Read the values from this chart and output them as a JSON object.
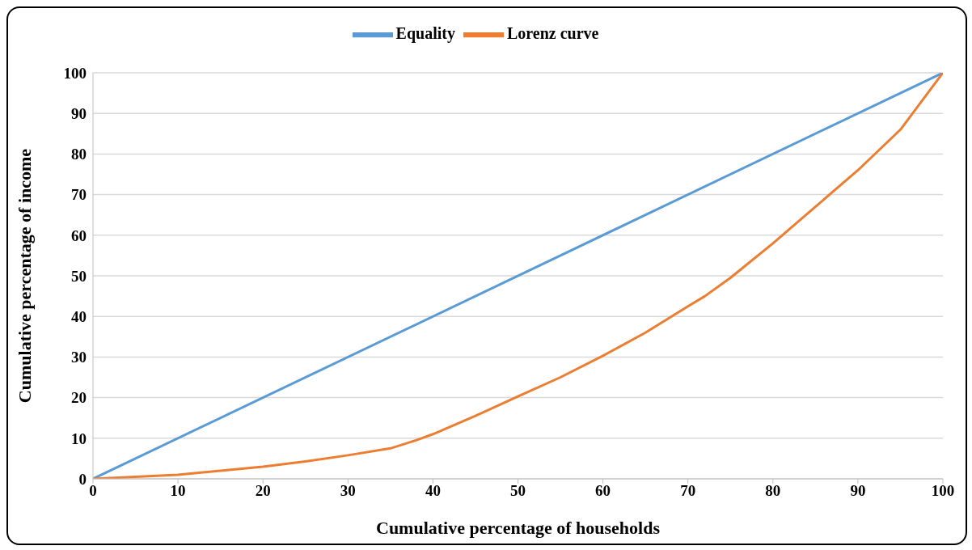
{
  "chart_data": {
    "type": "line",
    "xlabel": "Cumulative percentage of households",
    "ylabel": "Cumulative percentage of income",
    "xlim": [
      0,
      100
    ],
    "ylim": [
      0,
      100
    ],
    "xticks": [
      0,
      10,
      20,
      30,
      40,
      50,
      60,
      70,
      80,
      90,
      100
    ],
    "yticks": [
      0,
      10,
      20,
      30,
      40,
      50,
      60,
      70,
      80,
      90,
      100
    ],
    "grid": "y",
    "legend": "top",
    "marker": "none",
    "line_style": "solid",
    "series": [
      {
        "name": "Equality",
        "color": "#5b9bd5",
        "x": [
          0,
          100
        ],
        "values": [
          0,
          100
        ]
      },
      {
        "name": "Lorenz curve",
        "color": "#ed7d31",
        "x": [
          0,
          5,
          10,
          15,
          20,
          25,
          30,
          35,
          38,
          40,
          45,
          50,
          55,
          60,
          65,
          70,
          72,
          75,
          80,
          85,
          90,
          95,
          100
        ],
        "values": [
          0,
          0.5,
          1,
          2,
          3,
          4.3,
          5.8,
          7.5,
          9.5,
          11,
          15.5,
          20.3,
          25,
          30.3,
          36,
          42.5,
          45,
          49.5,
          58,
          67,
          76,
          86,
          100
        ]
      }
    ]
  }
}
